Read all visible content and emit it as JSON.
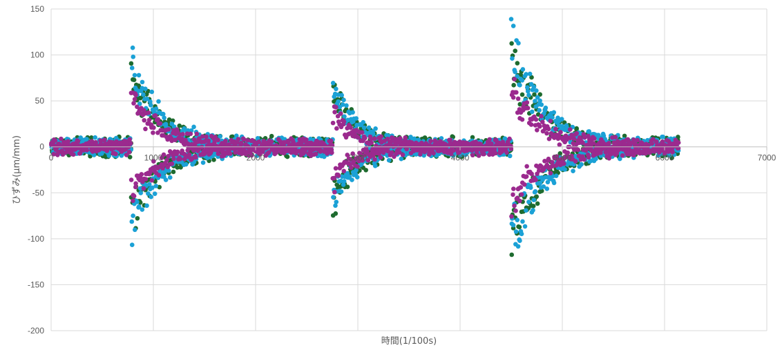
{
  "chart_data": {
    "type": "scatter",
    "title": "",
    "xlabel": "時間(1/100s)",
    "ylabel": "ひずみ(μm/mm)",
    "xlim": [
      0,
      7000
    ],
    "ylim": [
      -200,
      150
    ],
    "xticks": [
      0,
      1000,
      2000,
      3000,
      4000,
      5000,
      6000,
      7000
    ],
    "yticks": [
      150,
      100,
      50,
      0,
      -50,
      -100,
      -150,
      -200
    ],
    "xtick_labels": [
      "0",
      "1000",
      "2000",
      "3000",
      "4000",
      "5000",
      "6000",
      "7000"
    ],
    "ytick_labels": [
      "150",
      "100",
      "50",
      "0",
      "-50",
      "-100",
      "-150",
      "-200"
    ],
    "grid": true,
    "legend": "none",
    "x_range": [
      0,
      6130
    ],
    "events": [
      {
        "x": 780,
        "y_max": 110,
        "y_min": -115
      },
      {
        "x": 2750,
        "y_max": 82,
        "y_min": -87
      },
      {
        "x": 4500,
        "y_max": 135,
        "y_min": -137
      }
    ],
    "series": [
      {
        "color": "#1E6B2F",
        "event_amplitudes": [
          100,
          78,
          125
        ],
        "noise": 12
      },
      {
        "color": "#1BA1D6",
        "event_amplitudes": [
          112,
          85,
          136
        ],
        "noise": 11
      },
      {
        "color": "#9B2A8E",
        "event_amplitudes": [
          68,
          48,
          75
        ],
        "noise": 10
      }
    ]
  }
}
